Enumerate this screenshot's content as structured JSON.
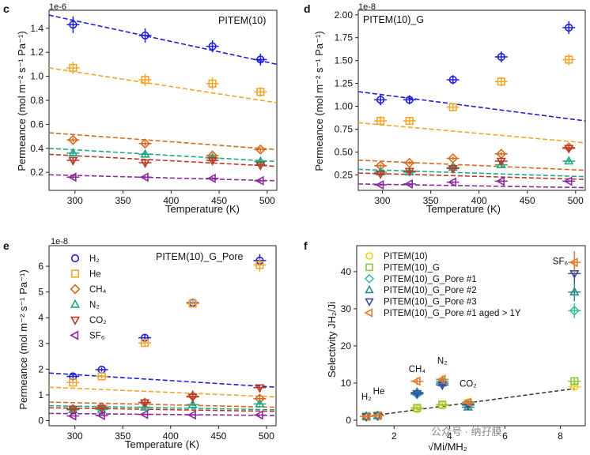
{
  "chart_data": [
    {
      "id": "c",
      "panel_label": "c",
      "type": "scatter",
      "title": "PITEM(10)",
      "xlabel": "Temperature (K)",
      "ylabel": "Permeance (mol m⁻² s⁻¹ Pa⁻¹)",
      "offset_text": "1e-6",
      "xlim": [
        273,
        510
      ],
      "ylim": [
        0.05,
        1.55
      ],
      "xticks": [
        300,
        350,
        400,
        450,
        500
      ],
      "xtick_labels": [
        "300",
        "350",
        "400",
        "450",
        "500"
      ],
      "yticks": [
        0.2,
        0.4,
        0.6,
        0.8,
        1.0,
        1.2,
        1.4
      ],
      "ytick_labels": [
        "0.2",
        "0.4",
        "0.6",
        "0.8",
        "1.0",
        "1.2",
        "1.4"
      ],
      "series": [
        {
          "name": "H2",
          "color": "#1f1fd6",
          "marker": "circle",
          "x": [
            298,
            373,
            443,
            493
          ],
          "y": [
            1.43,
            1.34,
            1.25,
            1.14
          ],
          "err": [
            0.07,
            0.06,
            0.05,
            0.05
          ],
          "fit": [
            1.51,
            1.1
          ]
        },
        {
          "name": "He",
          "color": "#f2a62b",
          "marker": "square",
          "x": [
            298,
            373,
            443,
            493
          ],
          "y": [
            1.07,
            0.97,
            0.94,
            0.87
          ],
          "err": [
            0.05,
            0.05,
            0.05,
            0.04
          ],
          "fit": [
            1.07,
            0.78
          ]
        },
        {
          "name": "CH4",
          "color": "#d56b1f",
          "marker": "diamond",
          "x": [
            298,
            373,
            443,
            493
          ],
          "y": [
            0.47,
            0.44,
            0.34,
            0.39
          ],
          "err": [
            0.02,
            0.02,
            0.02,
            0.02
          ],
          "fit": [
            0.53,
            0.39
          ]
        },
        {
          "name": "N2",
          "color": "#20a884",
          "marker": "triangle-up",
          "x": [
            298,
            373,
            443,
            493
          ],
          "y": [
            0.36,
            0.35,
            0.32,
            0.29
          ],
          "err": [
            0.02,
            0.02,
            0.02,
            0.02
          ],
          "fit": [
            0.4,
            0.29
          ]
        },
        {
          "name": "CO2",
          "color": "#b83a2a",
          "marker": "triangle-down",
          "x": [
            298,
            373,
            443,
            493
          ],
          "y": [
            0.3,
            0.28,
            0.3,
            0.26
          ],
          "err": [
            0.02,
            0.02,
            0.02,
            0.02
          ],
          "fit": [
            0.35,
            0.25
          ]
        },
        {
          "name": "SF6",
          "color": "#8a2a9c",
          "marker": "triangle-left",
          "x": [
            298,
            373,
            443,
            493
          ],
          "y": [
            0.16,
            0.16,
            0.15,
            0.13
          ],
          "err": [
            0.01,
            0.01,
            0.01,
            0.01
          ],
          "fit": [
            0.18,
            0.13
          ]
        }
      ]
    },
    {
      "id": "d",
      "panel_label": "d",
      "type": "scatter",
      "title": "PITEM(10)_G",
      "xlabel": "Temperature (K)",
      "ylabel": "Permeance (mol m⁻² s⁻¹ Pa⁻¹)",
      "offset_text": "1e-8",
      "xlim": [
        275,
        510
      ],
      "ylim": [
        0.08,
        2.05
      ],
      "xticks": [
        300,
        350,
        400,
        450,
        500
      ],
      "xtick_labels": [
        "300",
        "350",
        "400",
        "450",
        "500"
      ],
      "yticks": [
        0.25,
        0.5,
        0.75,
        1.0,
        1.25,
        1.5,
        1.75,
        2.0
      ],
      "ytick_labels": [
        "0.25",
        "0.50",
        "0.75",
        "1.00",
        "1.25",
        "1.50",
        "1.75",
        "2.00"
      ],
      "series": [
        {
          "name": "H2",
          "color": "#1f1fd6",
          "marker": "circle",
          "x": [
            298,
            328,
            373,
            423,
            493
          ],
          "y": [
            1.07,
            1.07,
            1.29,
            1.54,
            1.86
          ],
          "err": [
            0.06,
            0.05,
            0.05,
            0.06,
            0.07
          ],
          "fit": [
            1.16,
            0.84
          ]
        },
        {
          "name": "He",
          "color": "#f2a62b",
          "marker": "square",
          "x": [
            298,
            328,
            373,
            423,
            493
          ],
          "y": [
            0.84,
            0.84,
            0.99,
            1.27,
            1.51
          ],
          "err": [
            0.05,
            0.04,
            0.04,
            0.05,
            0.06
          ],
          "fit": [
            0.82,
            0.6
          ]
        },
        {
          "name": "CH4",
          "color": "#d56b1f",
          "marker": "diamond",
          "x": [
            298,
            328,
            373,
            423,
            493
          ],
          "y": [
            0.35,
            0.38,
            0.43,
            0.48,
            0.55
          ],
          "err": [
            0.02,
            0.02,
            0.02,
            0.02,
            0.03
          ],
          "fit": [
            0.41,
            0.3
          ]
        },
        {
          "name": "N2",
          "color": "#20a884",
          "marker": "triangle-up",
          "x": [
            298,
            328,
            373,
            423,
            493
          ],
          "y": [
            0.28,
            0.28,
            0.33,
            0.36,
            0.4
          ],
          "err": [
            0.02,
            0.02,
            0.02,
            0.02,
            0.02
          ],
          "fit": [
            0.31,
            0.23
          ]
        },
        {
          "name": "CO2",
          "color": "#b83a2a",
          "marker": "triangle-down",
          "x": [
            298,
            328,
            373,
            423,
            493
          ],
          "y": [
            0.26,
            0.29,
            0.32,
            0.4,
            0.54
          ],
          "err": [
            0.02,
            0.02,
            0.02,
            0.02,
            0.03
          ],
          "fit": [
            0.27,
            0.2
          ]
        },
        {
          "name": "SF6",
          "color": "#8a2a9c",
          "marker": "triangle-left",
          "x": [
            298,
            328,
            373,
            423,
            493
          ],
          "y": [
            0.14,
            0.15,
            0.17,
            0.18,
            0.18
          ],
          "err": [
            0.01,
            0.01,
            0.01,
            0.01,
            0.01
          ],
          "fit": [
            0.15,
            0.11
          ]
        }
      ]
    },
    {
      "id": "e",
      "panel_label": "e",
      "type": "scatter",
      "title": "PITEM(10)_G_Pore",
      "xlabel": "Temperature (K)",
      "ylabel": "Permeance (mol m⁻² s⁻¹ Pa⁻¹)",
      "offset_text": "1e-8",
      "xlim": [
        273,
        510
      ],
      "ylim": [
        -0.2,
        6.8
      ],
      "xticks": [
        300,
        350,
        400,
        450,
        500
      ],
      "xtick_labels": [
        "300",
        "350",
        "400",
        "450",
        "500"
      ],
      "yticks": [
        0,
        1,
        2,
        3,
        4,
        5,
        6
      ],
      "ytick_labels": [
        "0",
        "1",
        "2",
        "3",
        "4",
        "5",
        "6"
      ],
      "legend": [
        "H₂",
        "He",
        "CH₄",
        "N₂",
        "CO₂",
        "SF₆"
      ],
      "series": [
        {
          "name": "H2",
          "color": "#1f1fd6",
          "marker": "circle",
          "x": [
            298,
            328,
            373,
            423,
            493
          ],
          "y": [
            1.72,
            1.98,
            3.22,
            4.58,
            6.22
          ],
          "err": [
            0.08,
            0.08,
            0.12,
            0.15,
            0.25
          ],
          "fit": [
            1.85,
            1.3
          ]
        },
        {
          "name": "He",
          "color": "#f2a62b",
          "marker": "square",
          "x": [
            298,
            328,
            373,
            423,
            493
          ],
          "y": [
            1.48,
            1.72,
            3.02,
            4.55,
            6.05
          ],
          "err": [
            0.07,
            0.08,
            0.12,
            0.15,
            0.25
          ],
          "fit": [
            1.3,
            0.92
          ]
        },
        {
          "name": "CH4",
          "color": "#d56b1f",
          "marker": "diamond",
          "x": [
            298,
            328,
            373,
            423,
            493
          ],
          "y": [
            0.45,
            0.52,
            0.7,
            0.95,
            0.85
          ],
          "err": [
            0.05,
            0.05,
            0.1,
            0.2,
            0.15
          ],
          "fit": [
            0.72,
            0.52
          ]
        },
        {
          "name": "N2",
          "color": "#20a884",
          "marker": "triangle-up",
          "x": [
            298,
            328,
            373,
            423,
            493
          ],
          "y": [
            0.42,
            0.43,
            0.52,
            0.62,
            0.65
          ],
          "err": [
            0.04,
            0.04,
            0.05,
            0.06,
            0.07
          ],
          "fit": [
            0.58,
            0.42
          ]
        },
        {
          "name": "CO2",
          "color": "#b83a2a",
          "marker": "triangle-down",
          "x": [
            298,
            328,
            373,
            423,
            493
          ],
          "y": [
            0.45,
            0.48,
            0.7,
            0.92,
            1.28
          ],
          "err": [
            0.05,
            0.05,
            0.1,
            0.25,
            0.1
          ],
          "fit": [
            0.5,
            0.36
          ]
        },
        {
          "name": "SF6",
          "color": "#8a2a9c",
          "marker": "triangle-left",
          "x": [
            298,
            328,
            373,
            423,
            493
          ],
          "y": [
            0.18,
            0.2,
            0.24,
            0.22,
            0.22
          ],
          "err": [
            0.02,
            0.02,
            0.02,
            0.02,
            0.02
          ],
          "fit": [
            0.28,
            0.2
          ]
        }
      ]
    },
    {
      "id": "f",
      "panel_label": "f",
      "type": "scatter",
      "title": "",
      "xlabel": "√Mi/MH₂",
      "ylabel": "Selectivity JH₂/Ji",
      "offset_text": "",
      "xlim": [
        0.65,
        8.9
      ],
      "ylim": [
        -1.5,
        47
      ],
      "xticks": [
        2,
        4,
        6,
        8
      ],
      "xtick_labels": [
        "2",
        "4",
        "6",
        "8"
      ],
      "yticks": [
        0,
        10,
        20,
        30,
        40
      ],
      "ytick_labels": [
        "0",
        "10",
        "20",
        "30",
        "40"
      ],
      "legend": [
        "PITEM(10)",
        "PITEM(10)_G",
        "PITEM(10)_G_Pore #1",
        "PITEM(10)_G_Pore #2",
        "PITEM(10)_G_Pore #3",
        "PITEM(10)_G_Pore #1 aged > 1Y"
      ],
      "gas_labels": [
        {
          "text": "H₂",
          "x": 1.0,
          "y": 5.5
        },
        {
          "text": "He",
          "x": 1.45,
          "y": 7.0
        },
        {
          "text": "CH₄",
          "x": 2.83,
          "y": 13.0
        },
        {
          "text": "N₂",
          "x": 3.74,
          "y": 15.2
        },
        {
          "text": "CO₂",
          "x": 4.67,
          "y": 9.0
        },
        {
          "text": "SF₆",
          "x": 8.0,
          "y": 42.0
        }
      ],
      "ideal_line": {
        "x": [
          1.0,
          8.51
        ],
        "y": [
          1.0,
          8.51
        ]
      },
      "series": [
        {
          "name": "PITEM(10)",
          "color": "#f2d21e",
          "marker": "circle",
          "x": [
            1.0,
            1.41,
            2.83,
            3.74,
            4.67,
            8.51
          ],
          "y": [
            1.0,
            1.3,
            3.0,
            4.0,
            4.8,
            9.0
          ],
          "err": [
            0.2,
            0.2,
            0.4,
            0.4,
            0.5,
            0.6
          ]
        },
        {
          "name": "PITEM(10)_G",
          "color": "#8cc63f",
          "marker": "square",
          "x": [
            1.0,
            1.41,
            2.83,
            3.74,
            4.67,
            8.51
          ],
          "y": [
            1.0,
            1.3,
            3.3,
            4.2,
            4.5,
            10.5
          ],
          "err": [
            0.2,
            0.2,
            0.4,
            0.4,
            0.5,
            0.8
          ]
        },
        {
          "name": "PITEM(10)_G_Pore #1",
          "color": "#3cbf9a",
          "marker": "diamond",
          "x": [
            1.0,
            1.41,
            2.83,
            3.74,
            4.67,
            8.51
          ],
          "y": [
            1.0,
            1.2,
            7.0,
            10.5,
            4.0,
            29.5
          ],
          "err": [
            0.2,
            0.2,
            0.8,
            1.0,
            0.6,
            2.0
          ]
        },
        {
          "name": "PITEM(10)_G_Pore #2",
          "color": "#2a8a8c",
          "marker": "triangle-up",
          "x": [
            1.0,
            1.41,
            2.83,
            3.74,
            4.67,
            8.51
          ],
          "y": [
            1.0,
            1.2,
            7.5,
            10.0,
            3.5,
            34.5
          ],
          "err": [
            0.2,
            0.2,
            0.8,
            1.0,
            0.6,
            2.5
          ]
        },
        {
          "name": "PITEM(10)_G_Pore #3",
          "color": "#3a4aa8",
          "marker": "triangle-down",
          "x": [
            1.0,
            1.41,
            2.83,
            3.74,
            4.67,
            8.51
          ],
          "y": [
            1.0,
            1.2,
            7.2,
            9.5,
            4.2,
            39.5
          ],
          "err": [
            0.2,
            0.2,
            0.8,
            1.0,
            0.6,
            2.5
          ]
        },
        {
          "name": "PITEM(10)_G_Pore #1 aged > 1Y",
          "color": "#e8782a",
          "marker": "triangle-left",
          "x": [
            1.0,
            1.41,
            2.83,
            3.74,
            4.67,
            8.51
          ],
          "y": [
            1.0,
            1.2,
            10.5,
            11.0,
            4.8,
            42.5
          ],
          "err": [
            0.2,
            0.2,
            1.0,
            1.0,
            0.6,
            3.0
          ]
        }
      ]
    }
  ],
  "watermark": "公众号 · 纳孖膜"
}
